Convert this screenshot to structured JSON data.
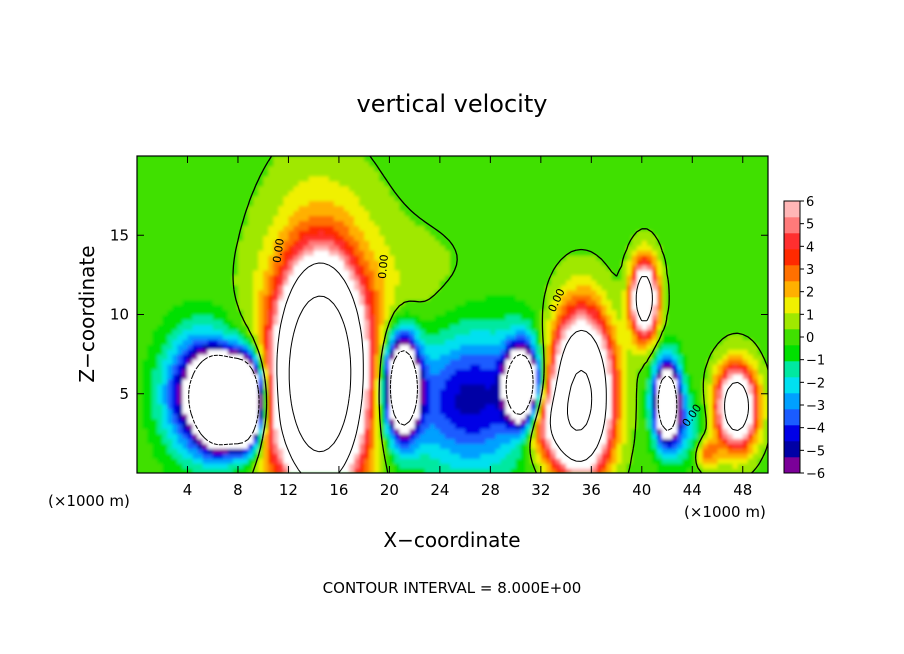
{
  "chart_data": {
    "type": "heatmap",
    "title": "vertical velocity",
    "xlabel": "X−coordinate",
    "ylabel": "Z−coordinate",
    "x_unit_left": "(×1000 m)",
    "x_unit_right": "(×1000 m)",
    "footer": "CONTOUR INTERVAL = 8.000E+00",
    "xlim": [
      0,
      50
    ],
    "ylim": [
      0,
      20
    ],
    "x_ticks": [
      4,
      8,
      12,
      16,
      20,
      24,
      28,
      32,
      36,
      40,
      44,
      48
    ],
    "y_ticks": [
      5,
      10,
      15
    ],
    "colorbar": {
      "range": [
        -6,
        6
      ],
      "tick_values": [
        6,
        5,
        4,
        3,
        2,
        1,
        0,
        -1,
        -2,
        -3,
        -4,
        -5,
        -6
      ],
      "tick_labels": [
        "6",
        "5",
        "4",
        "3",
        "2",
        "1",
        "0",
        "−1",
        "−2",
        "−3",
        "−4",
        "−5",
        "−6"
      ],
      "colors": [
        "#7b0099",
        "#0000a5",
        "#0000e6",
        "#1a5cff",
        "#00a0ff",
        "#00e0f0",
        "#00e8a0",
        "#00e000",
        "#40e000",
        "#a0e800",
        "#f0f000",
        "#ffb000",
        "#ff7000",
        "#ff2a00",
        "#ff2f2f",
        "#ff7a7a",
        "#ffb6b6"
      ]
    },
    "contour_labels": [
      "0.00",
      "0.00",
      "0.00",
      "0.00"
    ],
    "features": [
      {
        "x": 6.5,
        "z": 4.5,
        "value": -22,
        "rx": 1.4,
        "rz": 2.2
      },
      {
        "x": 8.5,
        "z": 4.5,
        "value": -22,
        "rx": 1.3,
        "rz": 2.4
      },
      {
        "x": 5.2,
        "z": 5.0,
        "value": -8,
        "rx": 2.8,
        "rz": 3.5
      },
      {
        "x": 14.5,
        "z": 6.2,
        "value": 28,
        "rx": 2.6,
        "rz": 5.2
      },
      {
        "x": 14.5,
        "z": 6.5,
        "value": 6,
        "rx": 4.4,
        "rz": 9.0
      },
      {
        "x": 21.0,
        "z": 5.5,
        "value": -14,
        "rx": 1.3,
        "rz": 3.0
      },
      {
        "x": 26.5,
        "z": 4.8,
        "value": -5,
        "rx": 5.5,
        "rz": 4.5
      },
      {
        "x": 30.5,
        "z": 5.5,
        "value": -13,
        "rx": 1.2,
        "rz": 2.3
      },
      {
        "x": 35.2,
        "z": 5.0,
        "value": 18,
        "rx": 2.2,
        "rz": 4.5
      },
      {
        "x": 33.0,
        "z": 3.0,
        "value": 5,
        "rx": 2.6,
        "rz": 2.2
      },
      {
        "x": 40.2,
        "z": 11.0,
        "value": 12,
        "rx": 1.0,
        "rz": 2.3
      },
      {
        "x": 42.0,
        "z": 4.5,
        "value": -13,
        "rx": 1.0,
        "rz": 2.4
      },
      {
        "x": 47.5,
        "z": 4.2,
        "value": 12,
        "rx": 1.5,
        "rz": 2.4
      },
      {
        "x": 45.2,
        "z": 1.3,
        "value": 3,
        "rx": 0.9,
        "rz": 1.0
      },
      {
        "x": 43.5,
        "z": 2.8,
        "value": -2,
        "rx": 1.5,
        "rz": 2.0
      },
      {
        "x": 10.5,
        "z": 2.0,
        "value": 1,
        "rx": 1.0,
        "rz": 2.0
      },
      {
        "x": 22.0,
        "z": 10.5,
        "value": 0.8,
        "rx": 6.0,
        "rz": 5.0
      }
    ]
  }
}
